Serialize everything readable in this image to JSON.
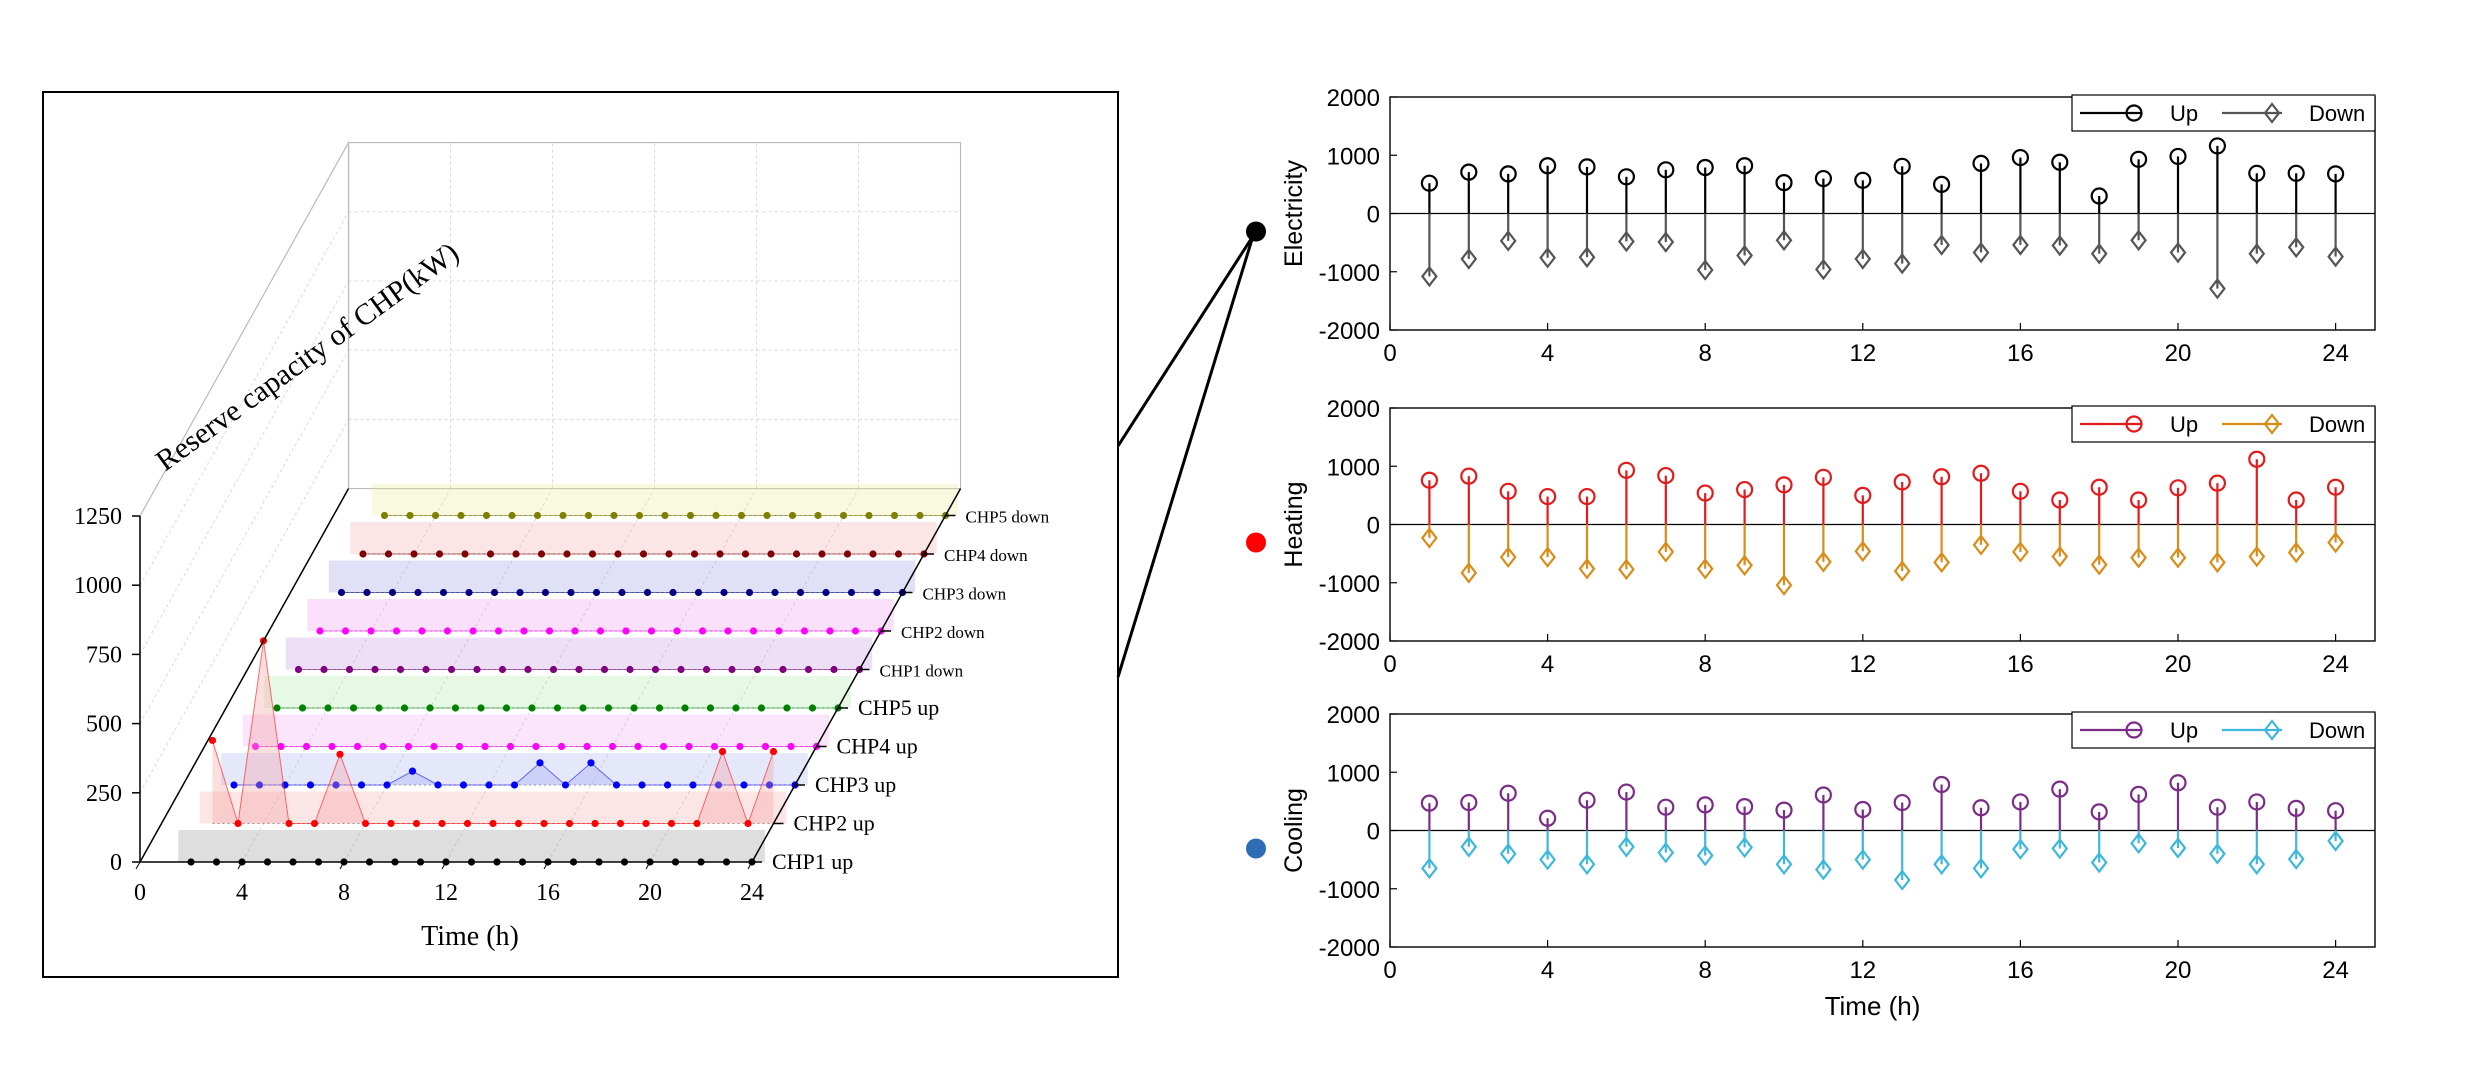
{
  "left_panel": {
    "zlabel": "Reserve capacity of CHP(kW)",
    "xlabel": "Time (h)",
    "xticks": [
      0,
      4,
      8,
      12,
      16,
      20,
      24
    ],
    "zticks": [
      0,
      250,
      500,
      750,
      1000,
      1250
    ],
    "series_labels": [
      "CHP1 up",
      "CHP2 up",
      "CHP3 up",
      "CHP4 up",
      "CHP5 up",
      "CHP1 down",
      "CHP2 down",
      "CHP3 down",
      "CHP4 down",
      "CHP5 down"
    ]
  },
  "right_panels": [
    {
      "ylabel": "Electricity",
      "marker_color": "#000000"
    },
    {
      "ylabel": "Heating",
      "marker_color": "#ff0000"
    },
    {
      "ylabel": "Cooling",
      "marker_color": "#2e6db4"
    }
  ],
  "shared_xlabel": "Time (h)",
  "chart_data": [
    {
      "type": "line",
      "title": "",
      "xlabel": "Time (h)",
      "zlabel": "Reserve capacity of CHP(kW)",
      "xlim": [
        0,
        24
      ],
      "zlim": [
        0,
        1250
      ],
      "x": [
        2,
        3,
        4,
        5,
        6,
        7,
        8,
        9,
        10,
        11,
        12,
        13,
        14,
        15,
        16,
        17,
        18,
        19,
        20,
        21,
        22,
        23,
        24
      ],
      "series": [
        {
          "name": "CHP1 up",
          "color": "#000000",
          "values": [
            0,
            0,
            0,
            0,
            0,
            0,
            0,
            0,
            0,
            0,
            0,
            0,
            0,
            0,
            0,
            0,
            0,
            0,
            0,
            0,
            0,
            0,
            0
          ]
        },
        {
          "name": "CHP2 up",
          "color": "#ff0000",
          "values": [
            300,
            0,
            660,
            0,
            0,
            250,
            0,
            0,
            0,
            0,
            0,
            0,
            0,
            0,
            0,
            0,
            0,
            0,
            0,
            0,
            260,
            0,
            260
          ]
        },
        {
          "name": "CHP3 up",
          "color": "#0000ff",
          "values": [
            0,
            0,
            0,
            0,
            0,
            0,
            0,
            50,
            0,
            0,
            0,
            0,
            80,
            0,
            80,
            0,
            0,
            0,
            0,
            0,
            0,
            0,
            0
          ]
        },
        {
          "name": "CHP4 up",
          "color": "#ff00ff",
          "values": [
            0,
            0,
            0,
            0,
            0,
            0,
            0,
            0,
            0,
            0,
            0,
            0,
            0,
            0,
            0,
            0,
            0,
            0,
            0,
            0,
            0,
            0,
            0
          ]
        },
        {
          "name": "CHP5 up",
          "color": "#008000",
          "values": [
            0,
            0,
            0,
            0,
            0,
            0,
            0,
            0,
            0,
            0,
            0,
            0,
            0,
            0,
            0,
            0,
            0,
            0,
            0,
            0,
            0,
            0,
            0
          ]
        },
        {
          "name": "CHP1 down",
          "color": "#800080",
          "values": [
            0,
            0,
            0,
            0,
            0,
            0,
            0,
            0,
            0,
            0,
            0,
            0,
            0,
            0,
            0,
            0,
            0,
            0,
            0,
            0,
            0,
            0,
            0
          ]
        },
        {
          "name": "CHP2 down",
          "color": "#ff00ff",
          "values": [
            0,
            0,
            0,
            0,
            0,
            0,
            0,
            0,
            0,
            0,
            0,
            0,
            0,
            0,
            0,
            0,
            0,
            0,
            0,
            0,
            0,
            0,
            0
          ]
        },
        {
          "name": "CHP3 down",
          "color": "#000080",
          "values": [
            0,
            0,
            0,
            0,
            0,
            0,
            0,
            0,
            0,
            0,
            0,
            0,
            0,
            0,
            0,
            0,
            0,
            0,
            0,
            0,
            0,
            0,
            0
          ]
        },
        {
          "name": "CHP4 down",
          "color": "#800000",
          "values": [
            0,
            0,
            0,
            0,
            0,
            0,
            0,
            0,
            0,
            0,
            0,
            0,
            0,
            0,
            0,
            0,
            0,
            0,
            0,
            0,
            0,
            0,
            0
          ]
        },
        {
          "name": "CHP5 down",
          "color": "#808000",
          "values": [
            0,
            0,
            0,
            0,
            0,
            0,
            0,
            0,
            0,
            0,
            0,
            0,
            0,
            0,
            0,
            0,
            0,
            0,
            0,
            0,
            0,
            0,
            0
          ]
        }
      ]
    },
    {
      "type": "stem",
      "ylabel": "Electricity",
      "xlabel": "",
      "xlim": [
        0,
        25
      ],
      "ylim": [
        -2000,
        2000
      ],
      "xticks": [
        0,
        4,
        8,
        12,
        16,
        20,
        24
      ],
      "yticks": [
        2000,
        1000,
        0,
        -1000,
        -2000
      ],
      "x": [
        1,
        2,
        3,
        4,
        5,
        6,
        7,
        8,
        9,
        10,
        11,
        12,
        13,
        14,
        15,
        16,
        17,
        18,
        19,
        20,
        21,
        22,
        23,
        24
      ],
      "legend_position": "top-right",
      "series": [
        {
          "name": "Up",
          "marker": "circle",
          "color": "#000000",
          "values": [
            520,
            710,
            680,
            820,
            800,
            630,
            750,
            790,
            820,
            530,
            600,
            570,
            810,
            500,
            860,
            960,
            880,
            300,
            930,
            980,
            1160,
            690,
            690,
            680
          ]
        },
        {
          "name": "Down",
          "marker": "diamond",
          "color": "#555555",
          "values": [
            -1080,
            -780,
            -470,
            -760,
            -750,
            -480,
            -490,
            -970,
            -720,
            -460,
            -960,
            -780,
            -860,
            -540,
            -670,
            -540,
            -550,
            -690,
            -460,
            -670,
            -1290,
            -690,
            -580,
            -740
          ]
        }
      ]
    },
    {
      "type": "stem",
      "ylabel": "Heating",
      "xlabel": "",
      "xlim": [
        0,
        25
      ],
      "ylim": [
        -2000,
        2000
      ],
      "xticks": [
        0,
        4,
        8,
        12,
        16,
        20,
        24
      ],
      "yticks": [
        2000,
        1000,
        0,
        -1000,
        -2000
      ],
      "x": [
        1,
        2,
        3,
        4,
        5,
        6,
        7,
        8,
        9,
        10,
        11,
        12,
        13,
        14,
        15,
        16,
        17,
        18,
        19,
        20,
        21,
        22,
        23,
        24
      ],
      "legend_position": "top-right",
      "series": [
        {
          "name": "Up",
          "marker": "circle",
          "color": "#e31a1c",
          "values": [
            760,
            830,
            570,
            480,
            480,
            930,
            840,
            540,
            600,
            680,
            810,
            500,
            730,
            820,
            880,
            570,
            420,
            640,
            420,
            630,
            710,
            1120,
            420,
            640
          ]
        },
        {
          "name": "Down",
          "marker": "diamond",
          "color": "#d98c1a",
          "values": [
            -230,
            -830,
            -560,
            -560,
            -760,
            -770,
            -470,
            -760,
            -700,
            -1040,
            -640,
            -460,
            -800,
            -650,
            -350,
            -470,
            -550,
            -690,
            -570,
            -570,
            -650,
            -550,
            -480,
            -310
          ]
        }
      ]
    },
    {
      "type": "stem",
      "ylabel": "Cooling",
      "xlabel": "Time (h)",
      "xlim": [
        0,
        25
      ],
      "ylim": [
        -2000,
        2000
      ],
      "xticks": [
        0,
        4,
        8,
        12,
        16,
        20,
        24
      ],
      "yticks": [
        2000,
        1000,
        0,
        -1000,
        -2000
      ],
      "x": [
        1,
        2,
        3,
        4,
        5,
        6,
        7,
        8,
        9,
        10,
        11,
        12,
        13,
        14,
        15,
        16,
        17,
        18,
        19,
        20,
        21,
        22,
        23,
        24
      ],
      "legend_position": "top-right",
      "series": [
        {
          "name": "Up",
          "marker": "circle",
          "color": "#7b2c87",
          "values": [
            470,
            480,
            640,
            210,
            520,
            660,
            400,
            440,
            410,
            350,
            610,
            360,
            480,
            790,
            390,
            490,
            710,
            320,
            620,
            820,
            400,
            490,
            380,
            340
          ]
        },
        {
          "name": "Down",
          "marker": "diamond",
          "color": "#3db8dc",
          "values": [
            -650,
            -280,
            -400,
            -500,
            -580,
            -280,
            -380,
            -430,
            -290,
            -580,
            -670,
            -500,
            -850,
            -580,
            -650,
            -320,
            -310,
            -550,
            -220,
            -300,
            -400,
            -580,
            -490,
            -180
          ]
        }
      ]
    }
  ]
}
